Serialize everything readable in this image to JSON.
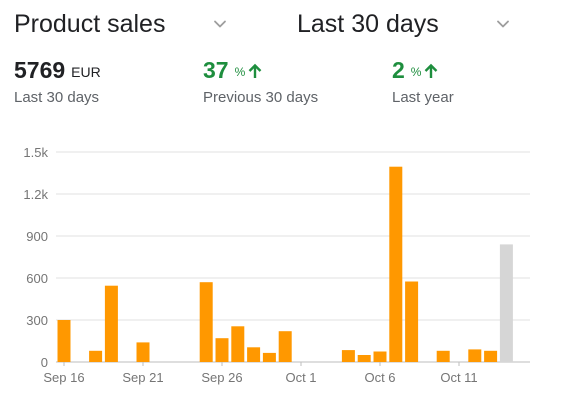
{
  "header": {
    "metric_selector": "Product sales",
    "range_selector": "Last 30 days",
    "chevron_icon": "chevron-down-icon"
  },
  "stats": {
    "total": {
      "value": "5769",
      "unit": "EUR",
      "caption": "Last 30 days"
    },
    "previous": {
      "value": "37",
      "unit": "%",
      "caption": "Previous 30 days",
      "trend_icon": "arrow-up-icon"
    },
    "year": {
      "value": "2",
      "unit": "%",
      "caption": "Last year",
      "trend_icon": "arrow-up-icon"
    }
  },
  "colors": {
    "bar": "#ff9800",
    "current_bar": "#d6d6d6",
    "positive": "#1e8e3e",
    "grid": "#e0e0e0"
  },
  "chart_data": {
    "type": "bar",
    "ylim": [
      0,
      1500
    ],
    "yticks": [
      0,
      300,
      600,
      900,
      1200,
      1500
    ],
    "ytick_labels": [
      "0",
      "300",
      "600",
      "900",
      "1.2k",
      "1.5k"
    ],
    "x_tick_labels": [
      {
        "label": "Sep 16",
        "index": 0
      },
      {
        "label": "Sep 21",
        "index": 5
      },
      {
        "label": "Sep 26",
        "index": 10
      },
      {
        "label": "Oct 1",
        "index": 15
      },
      {
        "label": "Oct 6",
        "index": 20
      },
      {
        "label": "Oct 11",
        "index": 25
      }
    ],
    "values": [
      300,
      0,
      80,
      545,
      0,
      140,
      0,
      0,
      0,
      570,
      170,
      255,
      105,
      65,
      220,
      0,
      0,
      0,
      85,
      50,
      75,
      1395,
      575,
      0,
      80,
      0,
      90,
      80,
      840
    ],
    "current_index": 28,
    "grid": true
  }
}
